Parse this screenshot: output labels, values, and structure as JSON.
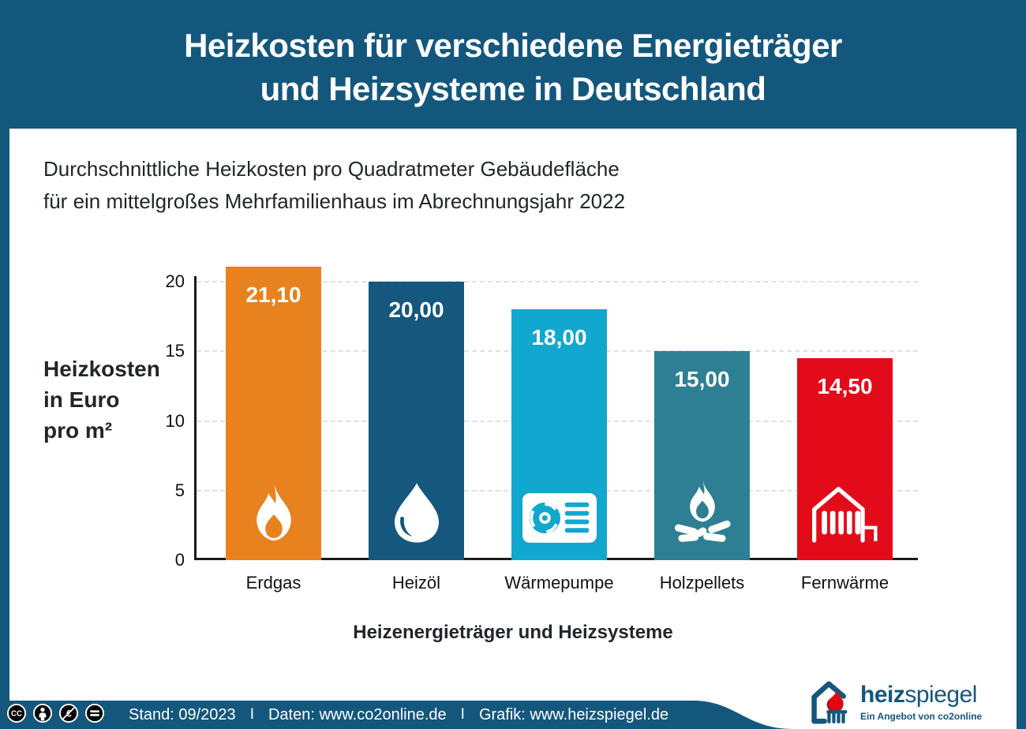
{
  "header": {
    "title_line1": "Heizkosten für verschiedene Energieträger",
    "title_line2": "und Heizsysteme in Deutschland"
  },
  "subtitle": {
    "line1": "Durchschnittliche Heizkosten pro Quadratmeter Gebäudefläche",
    "line2": "für ein mittelgroßes Mehrfamilienhaus im Abrechnungsjahr 2022"
  },
  "chart_data": {
    "type": "bar",
    "title": "Heizkosten für verschiedene Energieträger und Heizsysteme in Deutschland",
    "subtitle": "Durchschnittliche Heizkosten pro Quadratmeter Gebäudefläche für ein mittelgroßes Mehrfamilienhaus im Abrechnungsjahr 2022",
    "categories": [
      "Erdgas",
      "Heizöl",
      "Wärmepumpe",
      "Holzpellets",
      "Fernwärme"
    ],
    "values": [
      21.1,
      20.0,
      18.0,
      15.0,
      14.5
    ],
    "value_labels": [
      "21,10",
      "20,00",
      "18,00",
      "15,00",
      "14,50"
    ],
    "bar_colors": [
      "#E8821E",
      "#15577D",
      "#12A7CE",
      "#2E7F94",
      "#E30B1A"
    ],
    "bar_icons": [
      "flame-icon",
      "oil-drop-icon",
      "heat-pump-icon",
      "campfire-icon",
      "district-heating-icon"
    ],
    "ylabel_lines": [
      "Heizkosten",
      "in Euro",
      "pro m²"
    ],
    "xlabel": "Heizenergieträger und Heizsysteme",
    "yticks": [
      0,
      5,
      10,
      15,
      20
    ],
    "ylim": [
      0,
      22
    ],
    "grid": "horizontal dashed",
    "legend": "none"
  },
  "footer": {
    "license_icons": [
      "cc-icon",
      "cc-by-icon",
      "cc-nc-eu-icon",
      "cc-nd-icon"
    ],
    "items": [
      "Stand: 09/2023",
      "Daten: www.co2online.de",
      "Grafik: www.heizspiegel.de"
    ],
    "separator": "I"
  },
  "logo": {
    "icon": "heizspiegel-house-icon",
    "brand_bold": "heiz",
    "brand_regular": "spiegel",
    "tagline": "Ein Angebot von co2online"
  },
  "colors": {
    "background_blue": "#14577D",
    "panel_white": "#FFFFFF",
    "grid": "#DCE1EC",
    "axis": "#1A1A1A",
    "text_dark": "#20262B",
    "logo_blue": "#15567D",
    "logo_flame_red": "#E30613"
  }
}
